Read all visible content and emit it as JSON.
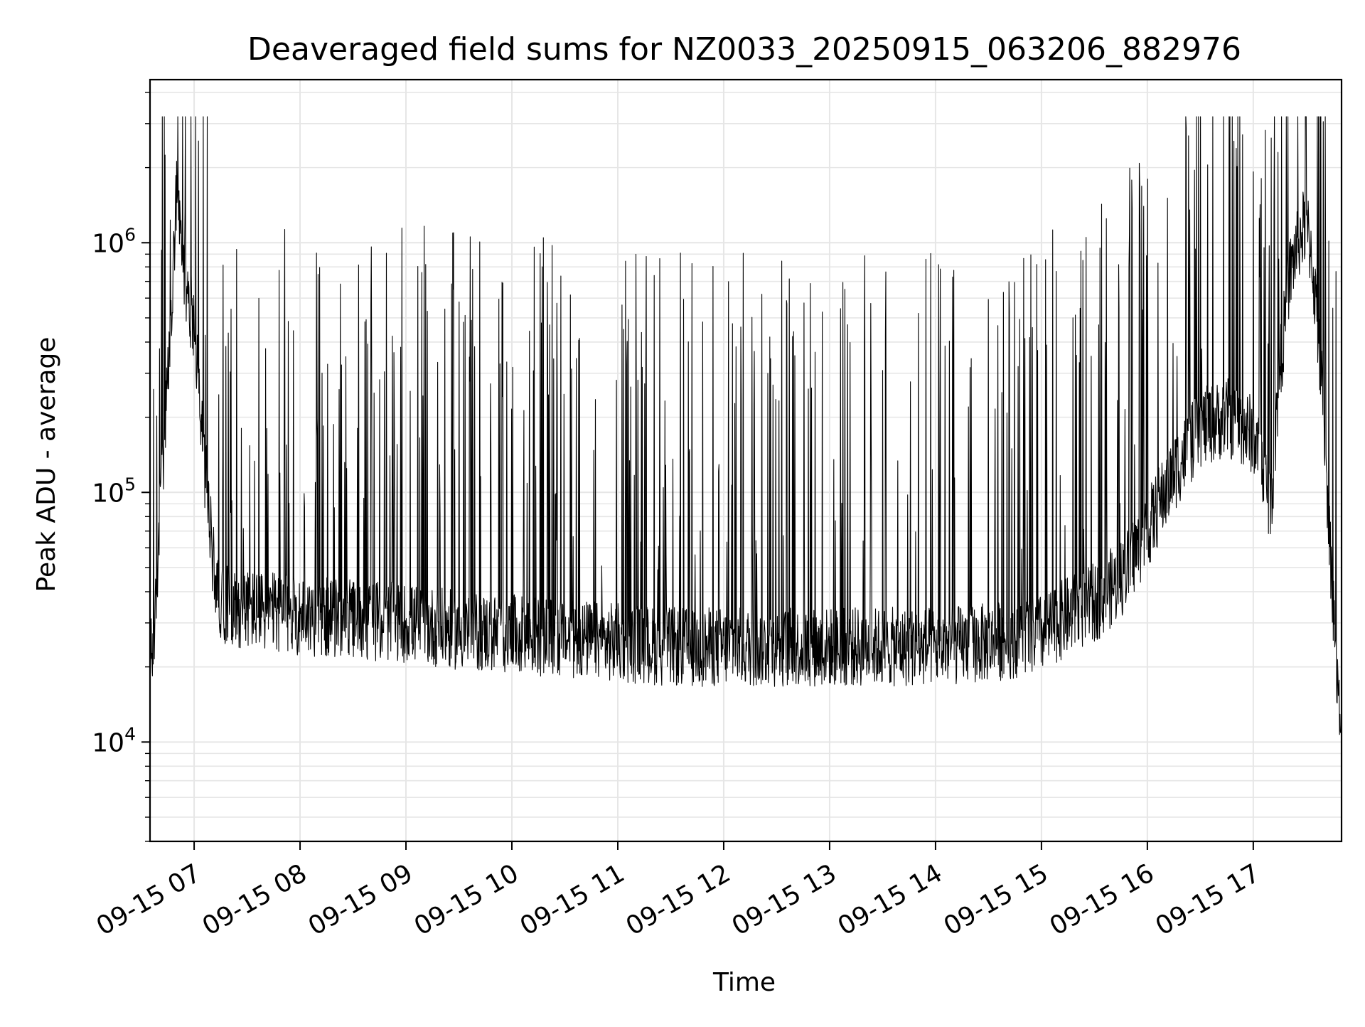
{
  "chart_data": {
    "type": "line",
    "title": "Deaveraged field sums for NZ0033_20250915_063206_882976",
    "xlabel": "Time",
    "ylabel": "Peak ADU - average",
    "yscale": "log",
    "ylim": [
      4000,
      4500000
    ],
    "xlim": [
      "2025-09-15 06:35",
      "2025-09-15 17:50"
    ],
    "grid": true,
    "line_color": "#000000",
    "x_ticks": [
      {
        "value": "2025-09-15 07:00",
        "label": "09-15 07"
      },
      {
        "value": "2025-09-15 08:00",
        "label": "09-15 08"
      },
      {
        "value": "2025-09-15 09:00",
        "label": "09-15 09"
      },
      {
        "value": "2025-09-15 10:00",
        "label": "09-15 10"
      },
      {
        "value": "2025-09-15 11:00",
        "label": "09-15 11"
      },
      {
        "value": "2025-09-15 12:00",
        "label": "09-15 12"
      },
      {
        "value": "2025-09-15 13:00",
        "label": "09-15 13"
      },
      {
        "value": "2025-09-15 14:00",
        "label": "09-15 14"
      },
      {
        "value": "2025-09-15 15:00",
        "label": "09-15 15"
      },
      {
        "value": "2025-09-15 16:00",
        "label": "09-15 16"
      },
      {
        "value": "2025-09-15 17:00",
        "label": "09-15 17"
      }
    ],
    "y_ticks": [
      {
        "value": 10000,
        "base": "10",
        "exp": "4"
      },
      {
        "value": 100000,
        "base": "10",
        "exp": "5"
      },
      {
        "value": 1000000,
        "base": "10",
        "exp": "6"
      }
    ],
    "series": [
      {
        "x": [
          "2025-09-15 06:35",
          "2025-09-15 06:38",
          "2025-09-15 06:40",
          "2025-09-15 06:43",
          "2025-09-15 06:46",
          "2025-09-15 06:48",
          "2025-09-15 06:50",
          "2025-09-15 06:52",
          "2025-09-15 06:53",
          "2025-09-15 06:55",
          "2025-09-15 06:57",
          "2025-09-15 07:00",
          "2025-09-15 07:05",
          "2025-09-15 07:08",
          "2025-09-15 07:10",
          "2025-09-15 07:12",
          "2025-09-15 07:14",
          "2025-09-15 07:16",
          "2025-09-15 07:20",
          "2025-09-15 07:30",
          "2025-09-15 07:45",
          "2025-09-15 08:00",
          "2025-09-15 08:30",
          "2025-09-15 09:00",
          "2025-09-15 09:30",
          "2025-09-15 10:00",
          "2025-09-15 10:30",
          "2025-09-15 11:00",
          "2025-09-15 11:30",
          "2025-09-15 12:00",
          "2025-09-15 12:30",
          "2025-09-15 13:00",
          "2025-09-15 13:30",
          "2025-09-15 14:00",
          "2025-09-15 14:30",
          "2025-09-15 15:00",
          "2025-09-15 15:15",
          "2025-09-15 15:30",
          "2025-09-15 15:45",
          "2025-09-15 16:00",
          "2025-09-15 16:15",
          "2025-09-15 16:30",
          "2025-09-15 16:45",
          "2025-09-15 17:00",
          "2025-09-15 17:10",
          "2025-09-15 17:15",
          "2025-09-15 17:20",
          "2025-09-15 17:25",
          "2025-09-15 17:30",
          "2025-09-15 17:33",
          "2025-09-15 17:36",
          "2025-09-15 17:40",
          "2025-09-15 17:43",
          "2025-09-15 17:46",
          "2025-09-15 17:48",
          "2025-09-15 17:50"
        ],
        "y": [
          20000,
          30000,
          70000,
          150000,
          350000,
          700000,
          1500000,
          1100000,
          900000,
          650000,
          550000,
          500000,
          150000,
          90000,
          60000,
          45000,
          40000,
          36000,
          35000,
          34000,
          33000,
          32000,
          31000,
          30000,
          28000,
          27000,
          26000,
          25000,
          24000,
          24000,
          24000,
          24000,
          24000,
          24000,
          25000,
          27000,
          32000,
          36000,
          45000,
          70000,
          120000,
          180000,
          200000,
          170000,
          90000,
          300000,
          700000,
          1000000,
          1200000,
          900000,
          500000,
          200000,
          70000,
          30000,
          15000,
          10000
        ]
      }
    ]
  }
}
